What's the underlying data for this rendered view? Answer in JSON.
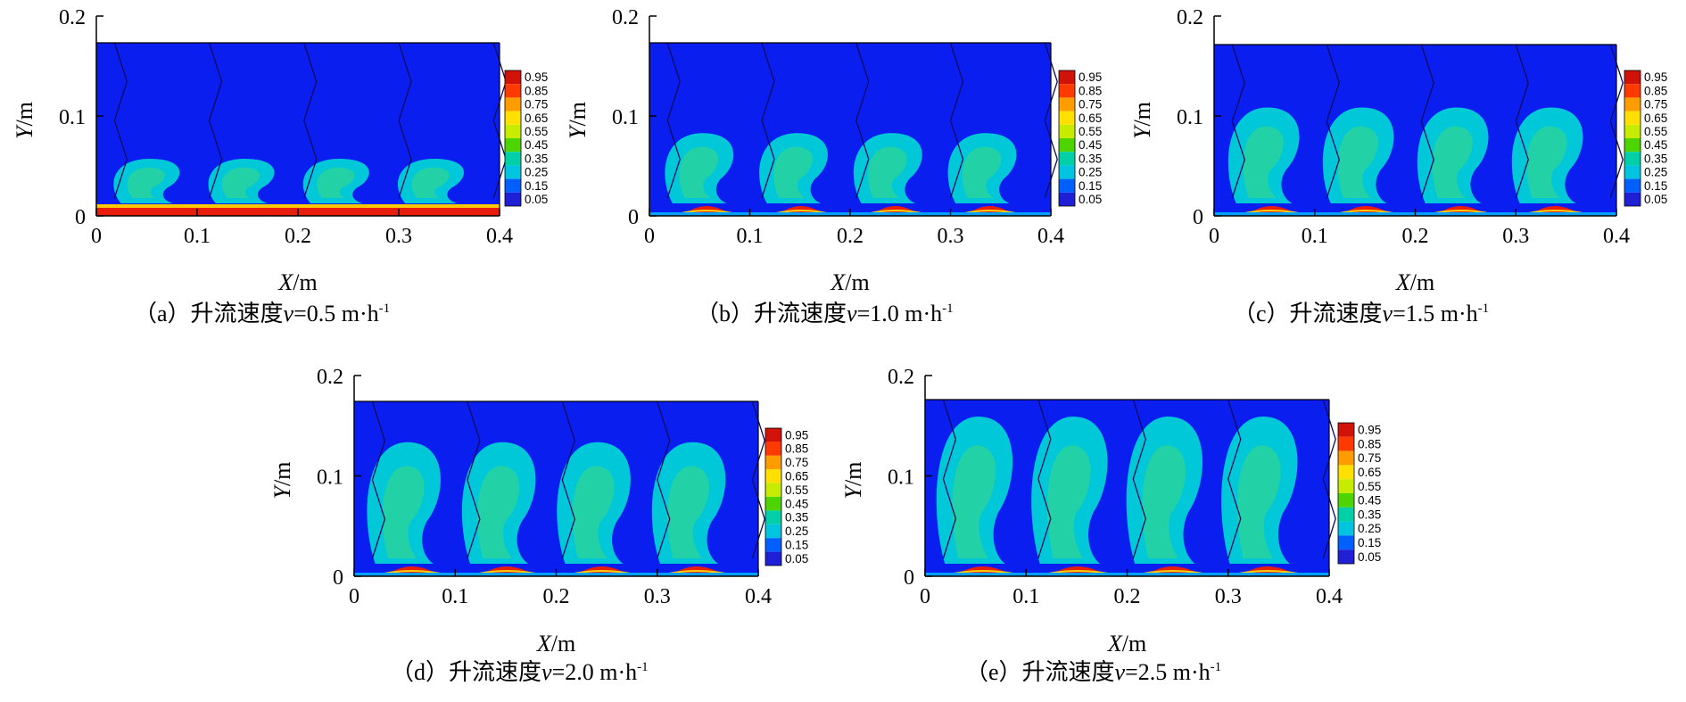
{
  "figure": {
    "colorbar_levels": [
      "0.95",
      "0.85",
      "0.75",
      "0.65",
      "0.55",
      "0.45",
      "0.35",
      "0.25",
      "0.15",
      "0.05"
    ],
    "colorbar_colors": [
      "#d01208",
      "#ff3a00",
      "#ff9c00",
      "#ffe000",
      "#c8ec00",
      "#4ed400",
      "#00d0a8",
      "#00c4e0",
      "#0060ff",
      "#1f1fd6"
    ],
    "field_color": "#0a1ef0",
    "panels": [
      {
        "id": "a",
        "x_ticks": [
          "0",
          "0.1",
          "0.2",
          "0.3",
          "0.4"
        ],
        "y_ticks": [
          "0",
          "0.1",
          "0.2"
        ],
        "x_label": {
          "var": "X",
          "unit": "/m"
        },
        "y_label": {
          "var": "Y",
          "unit": "/m"
        },
        "caption": {
          "prefix": "（a）升流速度",
          "var": "v",
          "value": "=0.5 m·h",
          "sup": "-1"
        }
      },
      {
        "id": "b",
        "x_ticks": [
          "0",
          "0.1",
          "0.2",
          "0.3",
          "0.4"
        ],
        "y_ticks": [
          "0",
          "0.1",
          "0.2"
        ],
        "x_label": {
          "var": "X",
          "unit": "/m"
        },
        "y_label": {
          "var": "Y",
          "unit": "/m"
        },
        "caption": {
          "prefix": "（b）升流速度",
          "var": "v",
          "value": "=1.0 m·h",
          "sup": "-1"
        }
      },
      {
        "id": "c",
        "x_ticks": [
          "0",
          "0.1",
          "0.2",
          "0.3",
          "0.4"
        ],
        "y_ticks": [
          "0",
          "0.1",
          "0.2"
        ],
        "x_label": {
          "var": "X",
          "unit": "/m"
        },
        "y_label": {
          "var": "Y",
          "unit": "/m"
        },
        "caption": {
          "prefix": "（c）升流速度",
          "var": "v",
          "value": "=1.5 m·h",
          "sup": "-1"
        }
      },
      {
        "id": "d",
        "x_ticks": [
          "0",
          "0.1",
          "0.2",
          "0.3",
          "0.4"
        ],
        "y_ticks": [
          "0",
          "0.1",
          "0.2"
        ],
        "x_label": {
          "var": "X",
          "unit": "/m"
        },
        "y_label": {
          "var": "Y",
          "unit": "/m"
        },
        "caption": {
          "prefix": "（d）升流速度",
          "var": "v",
          "value": "=2.0 m·h",
          "sup": "-1"
        }
      },
      {
        "id": "e",
        "x_ticks": [
          "0",
          "0.1",
          "0.2",
          "0.3",
          "0.4"
        ],
        "y_ticks": [
          "0",
          "0.1",
          "0.2"
        ],
        "x_label": {
          "var": "X",
          "unit": "/m"
        },
        "y_label": {
          "var": "Y",
          "unit": "/m"
        },
        "caption": {
          "prefix": "（e）升流速度",
          "var": "v",
          "value": "=2.5 m·h",
          "sup": "-1"
        }
      }
    ]
  }
}
